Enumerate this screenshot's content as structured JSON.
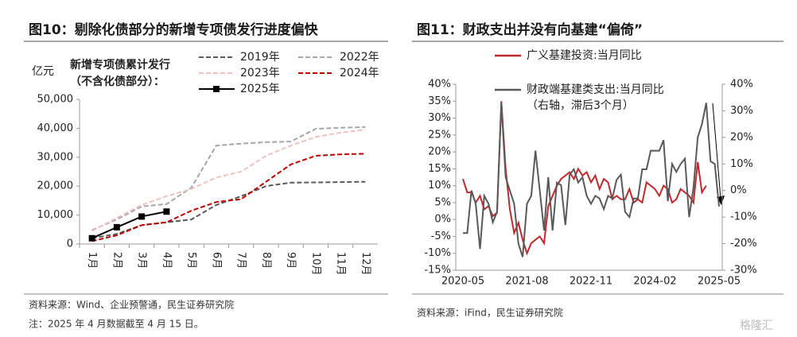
{
  "header": {
    "left_title": "图10：剔除化债部分的新增专项债发行进度偏快",
    "right_title": "图11：财政支出并没有向基建“偏倚”"
  },
  "footer": {
    "left_source": "资料来源：Wind、企业预警通，民生证券研究院",
    "left_note": "注：2025 年 4 月数据截至 4 月 15 日。",
    "right_source": "资料来源：iFind，民生证券研究院",
    "watermark": "格隆汇"
  },
  "chart_data": [
    {
      "type": "line",
      "ylabel": "亿元",
      "legend_title": [
        "新增专项债累计发行",
        "（不含化债部分）："
      ],
      "categories": [
        "1月",
        "2月",
        "3月",
        "4月",
        "5月",
        "6月",
        "7月",
        "8月",
        "9月",
        "10月",
        "11月",
        "12月"
      ],
      "ylim": [
        0,
        50000
      ],
      "yticks": [
        0,
        {
          "value": 10000,
          "label": "10,000"
        },
        {
          "value": 20000,
          "label": "20,000"
        },
        {
          "value": 30000,
          "label": "30,000"
        },
        {
          "value": 40000,
          "label": "40,000"
        },
        {
          "value": 50000,
          "label": "50,000"
        }
      ],
      "series": [
        {
          "name": "2019年",
          "color": "#595959",
          "dash": true,
          "values": [
            2000,
            3500,
            6500,
            7500,
            8500,
            13500,
            16500,
            20000,
            21200,
            21300,
            21400,
            21500
          ]
        },
        {
          "name": "2022年",
          "color": "#a6a6a6",
          "dash": true,
          "values": [
            4800,
            8500,
            13000,
            13800,
            19500,
            34000,
            34700,
            35200,
            35400,
            39800,
            40200,
            40400
          ]
        },
        {
          "name": "2023年",
          "color": "#f0c2bd",
          "dash": true,
          "values": [
            4500,
            9000,
            13500,
            16500,
            19000,
            23000,
            25000,
            30500,
            34000,
            37000,
            38500,
            39500
          ]
        },
        {
          "name": "2024年",
          "color": "#c00000",
          "dash": true,
          "values": [
            1000,
            3000,
            6500,
            7500,
            11500,
            14500,
            15500,
            21500,
            27500,
            30500,
            31000,
            31200
          ]
        },
        {
          "name": "2025年",
          "color": "#000000",
          "dash": false,
          "markers": true,
          "values": [
            2000,
            5800,
            9500,
            11200,
            null,
            null,
            null,
            null,
            null,
            null,
            null,
            null
          ]
        }
      ]
    },
    {
      "type": "line",
      "categories": [
        "2020-05",
        null,
        null,
        null,
        null,
        null,
        null,
        null,
        null,
        null,
        null,
        null,
        null,
        null,
        null,
        "2021-08",
        null,
        null,
        null,
        null,
        null,
        null,
        null,
        null,
        null,
        null,
        null,
        null,
        null,
        null,
        "2022-11",
        null,
        null,
        null,
        null,
        null,
        null,
        null,
        null,
        null,
        null,
        null,
        null,
        null,
        null,
        "2024-02",
        null,
        null,
        null,
        null,
        null,
        null,
        null,
        null,
        null,
        null,
        null,
        null,
        null,
        null,
        "2025-05"
      ],
      "ylim": [
        -15,
        40
      ],
      "yticks": [
        {
          "value": -15,
          "label": "-15%"
        },
        {
          "value": -10,
          "label": "-10%"
        },
        {
          "value": -5,
          "label": "-5%"
        },
        {
          "value": 0,
          "label": "0%"
        },
        {
          "value": 5,
          "label": "5%"
        },
        {
          "value": 10,
          "label": "10%"
        },
        {
          "value": 15,
          "label": "15%"
        },
        {
          "value": 20,
          "label": "20%"
        },
        {
          "value": 25,
          "label": "25%"
        },
        {
          "value": 30,
          "label": "30%"
        },
        {
          "value": 35,
          "label": "35%"
        },
        {
          "value": 40,
          "label": "40%"
        }
      ],
      "y2lim": [
        -30,
        40
      ],
      "y2ticks": [
        {
          "value": -30,
          "label": "-30%"
        },
        {
          "value": -20,
          "label": "-20%"
        },
        {
          "value": -10,
          "label": "-10%"
        },
        {
          "value": 0,
          "label": "0%"
        },
        {
          "value": 10,
          "label": "10%"
        },
        {
          "value": 20,
          "label": "20%"
        },
        {
          "value": 30,
          "label": "30%"
        },
        {
          "value": 40,
          "label": "40%"
        }
      ],
      "series": [
        {
          "name": "广义基建投资:当月同比",
          "color": "#c0282b",
          "values": [
            12,
            8,
            8,
            5,
            7,
            3,
            4,
            1,
            2,
            35,
            15,
            3,
            -4,
            -1,
            -6,
            -10,
            -7,
            -6,
            -5,
            -7,
            4,
            7,
            10,
            12,
            13,
            14,
            12,
            15,
            13,
            14,
            11,
            13,
            9,
            12,
            11,
            6,
            7,
            6,
            6,
            9,
            5,
            6,
            5,
            11,
            10,
            9,
            7,
            10,
            9,
            5,
            6,
            9,
            8,
            7,
            5,
            17,
            8,
            10,
            null,
            null,
            null
          ]
        },
        {
          "name": "财政端基建类支出:当月同比",
          "note": "（右轴，滞后3个月）",
          "axis": "y2",
          "color": "#595959",
          "values": [
            -16,
            -16,
            0,
            -5,
            -22,
            -2,
            -5,
            -12,
            -8,
            33,
            5,
            0,
            -5,
            -20,
            -25,
            -5,
            -2,
            15,
            0,
            -15,
            5,
            -15,
            3,
            2,
            -13,
            6,
            8,
            3,
            5,
            -2,
            -5,
            -2,
            -3,
            -7,
            -2,
            -3,
            4,
            6,
            -8,
            -10,
            -3,
            -3,
            8,
            8,
            15,
            15,
            15,
            19,
            -4,
            10,
            7,
            10,
            12,
            -10,
            1,
            20,
            25,
            33,
            11,
            10,
            -6
          ]
        }
      ]
    }
  ]
}
